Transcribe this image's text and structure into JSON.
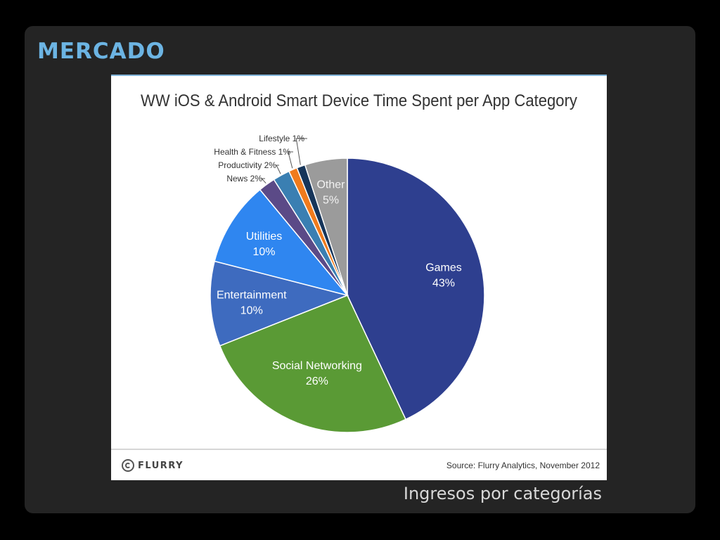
{
  "slide": {
    "title": "MERCADO",
    "caption": "Ingresos por categorías"
  },
  "figure": {
    "logo_text": "FLURRY",
    "logo_icon": "flurry-logo-icon",
    "source": "Source: Flurry Analytics, November 2012"
  },
  "chart_data": {
    "type": "pie",
    "title": "WW iOS & Android Smart Device Time Spent per App Category",
    "unit": "%",
    "slices": [
      {
        "label": "Games",
        "value": 43,
        "color": "#2e3f8f"
      },
      {
        "label": "Social Networking",
        "value": 26,
        "color": "#5a9a35"
      },
      {
        "label": "Entertainment",
        "value": 10,
        "color": "#3e6bbf"
      },
      {
        "label": "Utilities",
        "value": 10,
        "color": "#2f86f0"
      },
      {
        "label": "News",
        "value": 2,
        "color": "#5b4a87"
      },
      {
        "label": "Productivity",
        "value": 2,
        "color": "#3a7fb2"
      },
      {
        "label": "Health & Fitness",
        "value": 1,
        "color": "#f07b1d"
      },
      {
        "label": "Lifestyle",
        "value": 1,
        "color": "#16355a"
      },
      {
        "label": "Other",
        "value": 5,
        "color": "#9b9b9b"
      }
    ]
  }
}
